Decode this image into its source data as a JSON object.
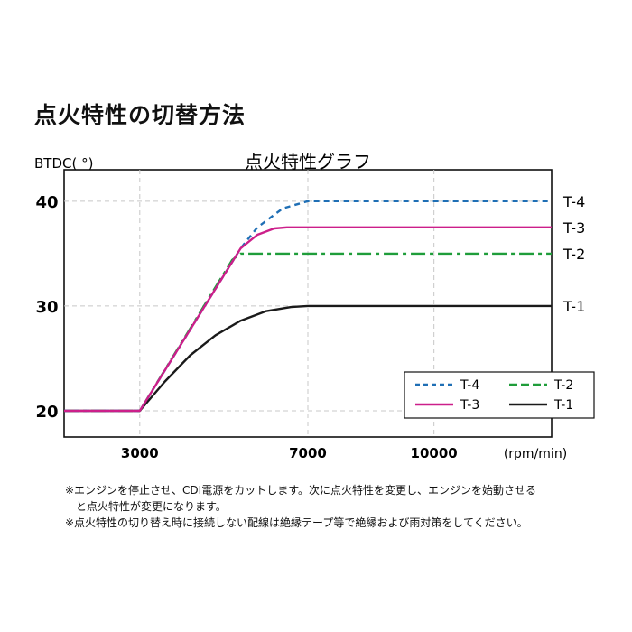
{
  "heading": "点火特性の切替方法",
  "chart_data": {
    "type": "line",
    "title": "点火特性グラフ",
    "ylabel": "BTDC( °)",
    "xlabel": "(rpm/min)",
    "xlim": [
      1200,
      12800
    ],
    "ylim": [
      17.5,
      43
    ],
    "x_ticks": [
      {
        "value": 3000,
        "label": "3000"
      },
      {
        "value": 7000,
        "label": "7000"
      },
      {
        "value": 10000,
        "label": "10000"
      }
    ],
    "y_ticks": [
      {
        "value": 20,
        "label": "20"
      },
      {
        "value": 30,
        "label": "30"
      },
      {
        "value": 40,
        "label": "40"
      }
    ],
    "grid": true,
    "legend_position": "bottom-right",
    "series": [
      {
        "name": "T-4",
        "color": "#1f6fb5",
        "dash": "dashed",
        "points": [
          [
            1200,
            20
          ],
          [
            3000,
            20
          ],
          [
            5400,
            35.5
          ],
          [
            5800,
            37.5
          ],
          [
            6400,
            39.3
          ],
          [
            7000,
            40
          ],
          [
            12800,
            40
          ]
        ]
      },
      {
        "name": "T-3",
        "color": "#cc1f8a",
        "dash": "solid",
        "points": [
          [
            1200,
            20
          ],
          [
            3000,
            20
          ],
          [
            5400,
            35.5
          ],
          [
            5800,
            36.8
          ],
          [
            6200,
            37.4
          ],
          [
            6500,
            37.5
          ],
          [
            12800,
            37.5
          ]
        ]
      },
      {
        "name": "T-2",
        "color": "#1f9d3a",
        "dash": "dashdot",
        "points": [
          [
            1200,
            20
          ],
          [
            3000,
            20
          ],
          [
            5200,
            34.4
          ],
          [
            5400,
            35
          ],
          [
            12800,
            35
          ]
        ]
      },
      {
        "name": "T-1",
        "color": "#1a1a1a",
        "dash": "solid",
        "points": [
          [
            1200,
            20
          ],
          [
            3000,
            20
          ],
          [
            3600,
            22.8
          ],
          [
            4200,
            25.3
          ],
          [
            4800,
            27.2
          ],
          [
            5400,
            28.6
          ],
          [
            6000,
            29.5
          ],
          [
            6600,
            29.9
          ],
          [
            7000,
            30
          ],
          [
            12800,
            30
          ]
        ]
      }
    ]
  },
  "notes": [
    "※エンジンを停止させ、CDI電源をカットします。次に点火特性を変更し、エンジンを始動させる",
    "と点火特性が変更になります。",
    "※点火特性の切り替え時に接続しない配線は絶縁テープ等で絶縁および雨対策をしてください。"
  ]
}
